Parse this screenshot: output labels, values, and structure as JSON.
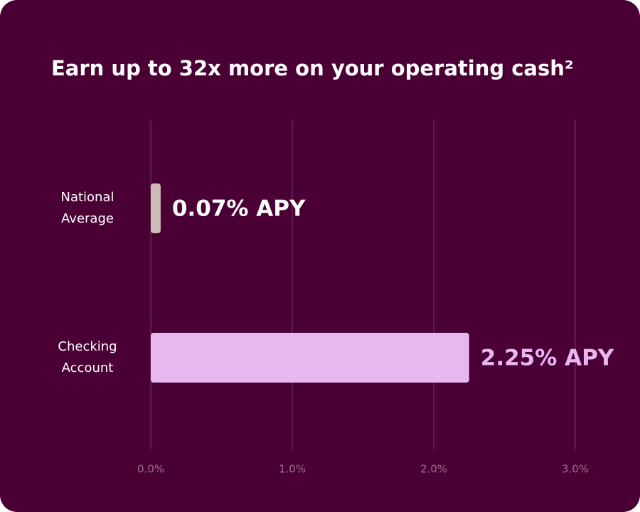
{
  "chart_data": {
    "type": "hbar",
    "title": "Earn up to 32x more on your operating cash²",
    "categories": [
      "National Average",
      "Checking Account"
    ],
    "values": [
      0.07,
      2.25
    ],
    "value_labels": [
      "0.07% APY",
      "2.25% APY"
    ],
    "colors": [
      "#cbbcb5",
      "#e8b7ef"
    ],
    "value_label_colors": [
      "#ffffff",
      "#e8b7ef"
    ],
    "xlim": [
      0,
      3
    ],
    "xticks": [
      {
        "value": 0,
        "label": "0.0%"
      },
      {
        "value": 1,
        "label": "1.0%"
      },
      {
        "value": 2,
        "label": "2.0%"
      },
      {
        "value": 3,
        "label": "3.0%"
      }
    ],
    "grid": true
  }
}
